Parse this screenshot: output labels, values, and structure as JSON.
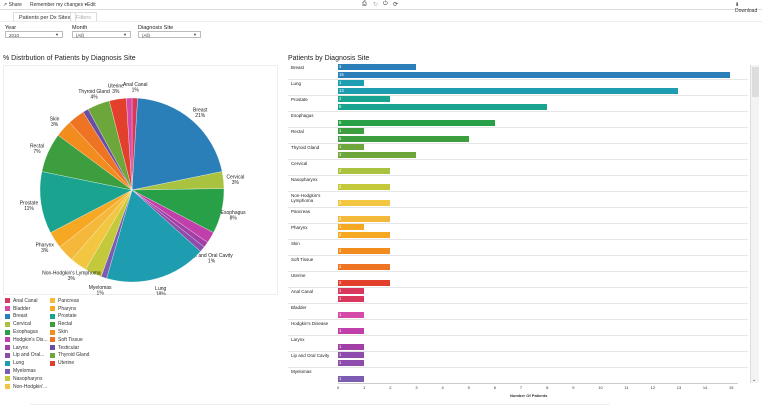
{
  "toolbar": {
    "share": "Share",
    "remember": "Remember my changes ▾",
    "edit": "Edit",
    "download": "Download"
  },
  "tabs": [
    {
      "label": "Patients per Dx Sites"
    },
    {
      "label": "Filters"
    }
  ],
  "filters": [
    {
      "label": "Year",
      "value": "2010"
    },
    {
      "label": "Month",
      "value": "(All)"
    },
    {
      "label": "Diagnosis Site",
      "value": "(All)"
    }
  ],
  "colors": {
    "Anal Canal": "#d9385e",
    "Bladder": "#d44aa6",
    "Breast": "#2a7fb8",
    "Cervical": "#a9c23f",
    "Esophagus": "#27a048",
    "Hodgkin's Disease": "#c13faa",
    "Larynx": "#a23fa6",
    "Lip and Oral Cavity": "#8e4dab",
    "Lung": "#1f9db0",
    "Myelomas": "#7b5cb0",
    "Nasopharynx": "#c3c93a",
    "Non-Hodgkin's Lymphoma": "#f2c640",
    "Pancreas": "#f4b83a",
    "Pharynx": "#f7a823",
    "Prostate": "#1aa38f",
    "Rectal": "#3c9e3e",
    "Skin": "#f28c1e",
    "Soft Tissue": "#ee7322",
    "Testicular": "#6a4ea5",
    "Thyroid Gland": "#6da63b",
    "Uterine": "#e2402c"
  },
  "chart_data": [
    {
      "type": "pie",
      "title": "% Distrbution of Patients by Diagnosis Site",
      "slices": [
        {
          "name": "Anal Canal",
          "value": 1,
          "label": "1%"
        },
        {
          "name": "Breast",
          "value": 21,
          "label": "21%"
        },
        {
          "name": "Cervical",
          "value": 3,
          "label": "3%"
        },
        {
          "name": "Esophagus",
          "value": 8,
          "label": "8%"
        },
        {
          "name": "Hodgkin's Disease",
          "value": 2
        },
        {
          "name": "Larynx",
          "value": 1
        },
        {
          "name": "Lip and Oral Cavity",
          "value": 1,
          "label": "1%"
        },
        {
          "name": "Lung",
          "value": 18,
          "label": "18%"
        },
        {
          "name": "Myelomas",
          "value": 1,
          "label": "1%"
        },
        {
          "name": "Nasopharynx",
          "value": 3
        },
        {
          "name": "Non-Hodgkin's Lymphoma",
          "value": 3,
          "label": "3%"
        },
        {
          "name": "Pancreas",
          "value": 3
        },
        {
          "name": "Pharynx",
          "value": 3,
          "label": "3%"
        },
        {
          "name": "Prostate",
          "value": 11,
          "label": "11%"
        },
        {
          "name": "Rectal",
          "value": 7,
          "label": "7%"
        },
        {
          "name": "Skin",
          "value": 3,
          "label": "3%"
        },
        {
          "name": "Soft Tissue",
          "value": 3
        },
        {
          "name": "Testicular",
          "value": 1
        },
        {
          "name": "Thyroid Gland",
          "value": 4,
          "label": "4%"
        },
        {
          "name": "Uterine",
          "value": 3,
          "label": "3%"
        },
        {
          "name": "Bladder",
          "value": 1
        }
      ],
      "legend": [
        "Anal Canal",
        "Bladder",
        "Breast",
        "Cervical",
        "Esophagus",
        "Hodgkin's Dis...",
        "Larynx",
        "Lip and Oral...",
        "Lung",
        "Myelomas",
        "Nasopharynx",
        "Non-Hodgkin'...",
        "Pancreas",
        "Pharynx",
        "Prostate",
        "Rectal",
        "Skin",
        "Soft Tissue",
        "Testicular",
        "Thyroid Gland",
        "Uterine"
      ],
      "legend_keys": [
        "Anal Canal",
        "Bladder",
        "Breast",
        "Cervical",
        "Esophagus",
        "Hodgkin's Disease",
        "Larynx",
        "Lip and Oral Cavity",
        "Lung",
        "Myelomas",
        "Nasopharynx",
        "Non-Hodgkin's Lymphoma",
        "Pancreas",
        "Pharynx",
        "Prostate",
        "Rectal",
        "Skin",
        "Soft Tissue",
        "Testicular",
        "Thyroid Gland",
        "Uterine"
      ]
    },
    {
      "type": "bar",
      "orientation": "horizontal",
      "title": "Patients by Diagnosis Site",
      "xlabel": "Number Of Patients",
      "xlim": [
        0,
        15
      ],
      "xticks": [
        0,
        1,
        2,
        3,
        4,
        5,
        6,
        7,
        8,
        9,
        10,
        11,
        12,
        13,
        14,
        15
      ],
      "categories": [
        {
          "name": "Breast",
          "label": "Breast",
          "values": [
            3,
            15
          ]
        },
        {
          "name": "Lung",
          "label": "Lung",
          "values": [
            1,
            13
          ]
        },
        {
          "name": "Prostate",
          "label": "Prostate",
          "values": [
            2,
            8
          ]
        },
        {
          "name": "Esophagus",
          "label": "Esophagus",
          "values": [
            null,
            6
          ]
        },
        {
          "name": "Rectal",
          "label": "Rectal",
          "values": [
            1,
            5
          ]
        },
        {
          "name": "Thyroid Gland",
          "label": "Thyroid Gland",
          "values": [
            1,
            3
          ]
        },
        {
          "name": "Cervical",
          "label": "Cervical",
          "values": [
            null,
            2
          ]
        },
        {
          "name": "Nasopharynx",
          "label": "Nasopharynx",
          "values": [
            null,
            2
          ]
        },
        {
          "name": "Non-Hodgkin's Lymphoma",
          "label": "Non-Hodgkin's Lymphoma",
          "values": [
            null,
            2
          ]
        },
        {
          "name": "Pancreas",
          "label": "Pancreas",
          "values": [
            null,
            2
          ]
        },
        {
          "name": "Pharynx",
          "label": "Pharynx",
          "values": [
            1,
            2
          ]
        },
        {
          "name": "Skin",
          "label": "Skin",
          "values": [
            null,
            2
          ]
        },
        {
          "name": "Soft Tissue",
          "label": "Soft Tissue",
          "values": [
            null,
            2
          ]
        },
        {
          "name": "Uterine",
          "label": "Uterine",
          "values": [
            null,
            2
          ]
        },
        {
          "name": "Anal Canal",
          "label": "Anal Canal",
          "values": [
            1,
            1
          ]
        },
        {
          "name": "Bladder",
          "label": "Bladder",
          "values": [
            null,
            1
          ]
        },
        {
          "name": "Hodgkin's Disease",
          "label": "Hodgkin's Disease",
          "values": [
            null,
            1
          ]
        },
        {
          "name": "Larynx",
          "label": "Larynx",
          "values": [
            null,
            1
          ]
        },
        {
          "name": "Lip and Oral Cavity",
          "label": "Lip and Oral Cavity",
          "values": [
            1,
            1
          ]
        },
        {
          "name": "Myelomas",
          "label": "Myelomas",
          "values": [
            null,
            1
          ]
        }
      ]
    }
  ]
}
